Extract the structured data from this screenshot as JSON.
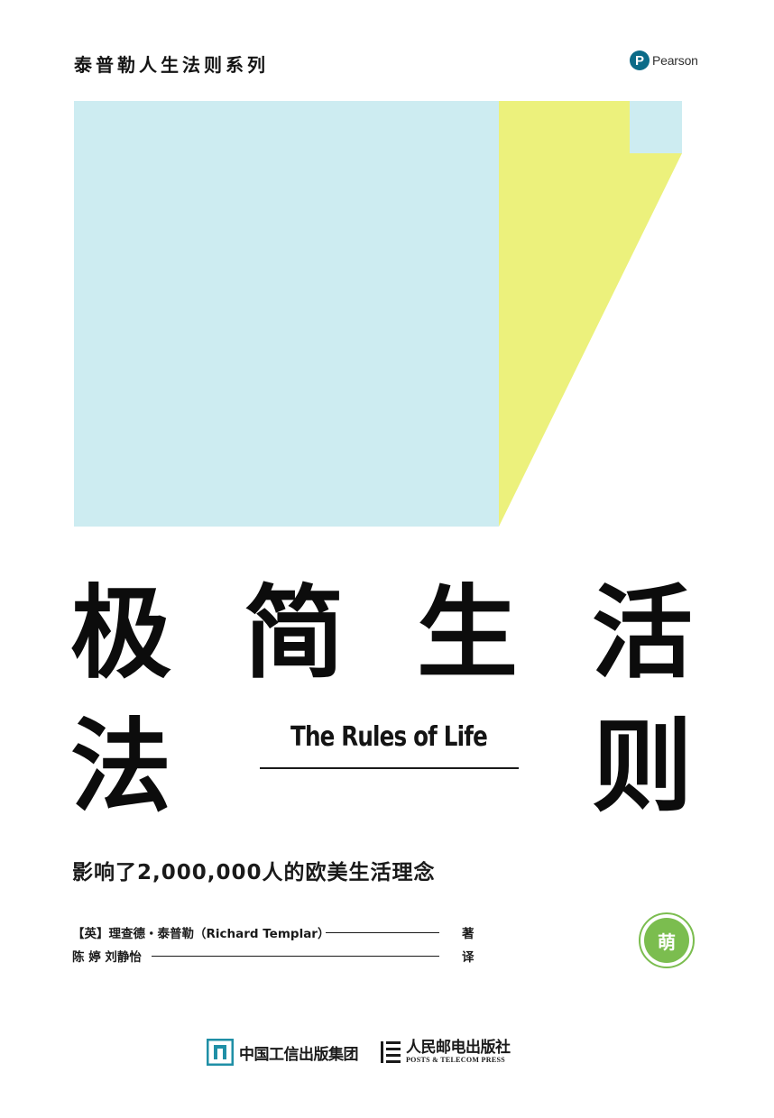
{
  "series": {
    "title": "泰普勒人生法则系列"
  },
  "publisher_logo": {
    "mark": "P",
    "name": "Pearson",
    "color": "#0b6b88"
  },
  "artwork": {
    "colors": {
      "blue": "#cdecf1",
      "yellow": "#ecf17c"
    }
  },
  "title": {
    "chars": [
      "极",
      "简",
      "生",
      "活",
      "法",
      "则"
    ],
    "english": "The Rules of  Life"
  },
  "tagline": "影响了2,000,000人的欧美生活理念",
  "credits": {
    "author": "【英】理查德・泰普勒（Richard Templar）",
    "author_role": "著",
    "translators": "陈 婷  刘静怡",
    "translator_role": "译"
  },
  "badge": {
    "text": "萌",
    "color": "#7bbd4f"
  },
  "publishers": {
    "group": "中国工信出版集团",
    "press": "人民邮电出版社",
    "press_en": "POSTS & TELECOM PRESS",
    "group_color": "#1f8fa6"
  }
}
